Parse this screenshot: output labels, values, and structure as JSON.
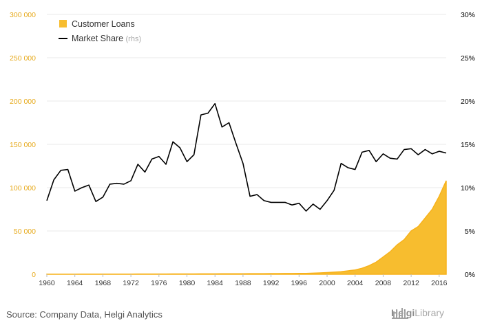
{
  "chart_data": {
    "type": "area+line",
    "title": "",
    "colors": {
      "loans": "#f7b21c",
      "loans_fill": "#f7bd2f",
      "share": "#000000",
      "left_axis_text": "#e6a817",
      "right_axis_text": "#000000",
      "grid": "#e8e8e8"
    },
    "legend": {
      "placement": "top-left",
      "items": [
        {
          "label": "Customer Loans",
          "suffix": ""
        },
        {
          "label": "Market Share",
          "suffix": "(rhs)"
        }
      ]
    },
    "y_left": {
      "range": [
        0,
        300000
      ],
      "ticks": [
        0,
        50000,
        100000,
        150000,
        200000,
        250000,
        300000
      ],
      "tick_labels": [
        "0",
        "50 000",
        "100 000",
        "150 000",
        "200 000",
        "250 000",
        "300 000"
      ]
    },
    "y_right": {
      "range": [
        0,
        30
      ],
      "ticks": [
        0,
        5,
        10,
        15,
        20,
        25,
        30
      ],
      "tick_labels": [
        "0%",
        "5%",
        "10%",
        "15%",
        "20%",
        "25%",
        "30%"
      ]
    },
    "x": {
      "range": [
        1960,
        2017
      ],
      "ticks": [
        1960,
        1964,
        1968,
        1972,
        1976,
        1980,
        1984,
        1988,
        1992,
        1996,
        2000,
        2004,
        2008,
        2012,
        2016
      ],
      "tick_labels": [
        "1960",
        "1964",
        "1968",
        "1972",
        "1976",
        "1980",
        "1984",
        "1988",
        "1992",
        "1996",
        "2000",
        "2004",
        "2008",
        "2012",
        "2016"
      ]
    },
    "series": [
      {
        "name": "Customer Loans",
        "axis": "left",
        "type": "area",
        "x": [
          1960,
          1961,
          1962,
          1963,
          1964,
          1965,
          1966,
          1967,
          1968,
          1969,
          1970,
          1971,
          1972,
          1973,
          1974,
          1975,
          1976,
          1977,
          1978,
          1979,
          1980,
          1981,
          1982,
          1983,
          1984,
          1985,
          1986,
          1987,
          1988,
          1989,
          1990,
          1991,
          1992,
          1993,
          1994,
          1995,
          1996,
          1997,
          1998,
          1999,
          2000,
          2001,
          2002,
          2003,
          2004,
          2005,
          2006,
          2007,
          2008,
          2009,
          2010,
          2011,
          2012,
          2013,
          2014,
          2015,
          2016,
          2017
        ],
        "values": [
          100,
          110,
          120,
          130,
          140,
          150,
          160,
          170,
          180,
          190,
          200,
          220,
          240,
          260,
          280,
          300,
          320,
          340,
          360,
          380,
          400,
          430,
          460,
          490,
          520,
          550,
          580,
          610,
          640,
          670,
          700,
          740,
          780,
          820,
          860,
          900,
          950,
          1000,
          1300,
          1600,
          2000,
          2500,
          3000,
          4000,
          5000,
          7000,
          10000,
          14000,
          20000,
          26000,
          34000,
          40000,
          50000,
          55000,
          65000,
          75000,
          90000,
          108000
        ]
      },
      {
        "name": "Market Share",
        "axis": "right",
        "type": "line",
        "x": [
          1960,
          1961,
          1962,
          1963,
          1964,
          1965,
          1966,
          1967,
          1968,
          1969,
          1970,
          1971,
          1972,
          1973,
          1974,
          1975,
          1976,
          1977,
          1978,
          1979,
          1980,
          1981,
          1982,
          1983,
          1984,
          1985,
          1986,
          1987,
          1988,
          1989,
          1990,
          1991,
          1992,
          1993,
          1994,
          1995,
          1996,
          1997,
          1998,
          1999,
          2000,
          2001,
          2002,
          2003,
          2004,
          2005,
          2006,
          2007,
          2008,
          2009,
          2010,
          2011,
          2012,
          2013,
          2014,
          2015,
          2016,
          2017
        ],
        "values": [
          8.5,
          10.9,
          12.0,
          12.1,
          9.6,
          10.0,
          10.3,
          8.4,
          8.9,
          10.4,
          10.5,
          10.4,
          10.8,
          12.7,
          11.8,
          13.3,
          13.6,
          12.7,
          15.3,
          14.6,
          13.0,
          13.8,
          18.4,
          18.6,
          19.7,
          17.0,
          17.5,
          15.1,
          12.8,
          9.0,
          9.2,
          8.5,
          8.3,
          8.3,
          8.3,
          8.0,
          8.2,
          7.3,
          8.1,
          7.5,
          8.5,
          9.7,
          12.8,
          12.3,
          12.1,
          14.1,
          14.3,
          13.0,
          13.9,
          13.4,
          13.3,
          14.4,
          14.5,
          13.8,
          14.4,
          13.9,
          14.2,
          14.0
        ]
      }
    ]
  },
  "footer": {
    "source": "Source: Company Data, Helgi Analytics",
    "logo_helgi": "Helgi",
    "logo_library": "Library"
  }
}
